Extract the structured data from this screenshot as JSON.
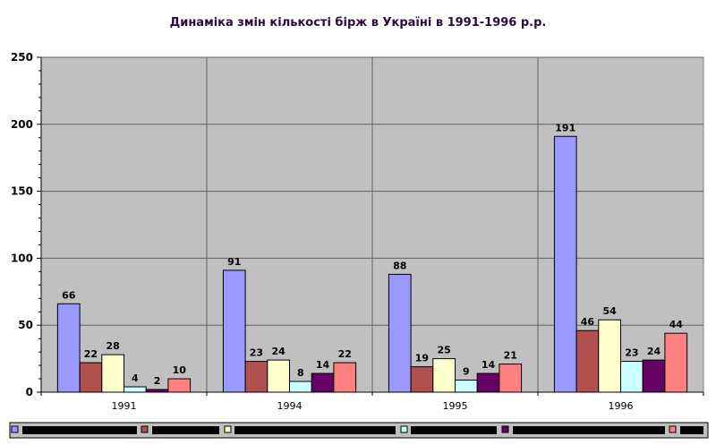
{
  "chart_data": {
    "type": "bar",
    "title": "Динаміка змін кількості бірж в Україні в 1991-1996 р.р.",
    "categories": [
      "1991",
      "1994",
      "1995",
      "1996"
    ],
    "series": [
      {
        "values": [
          66,
          91,
          88,
          191
        ]
      },
      {
        "values": [
          22,
          23,
          19,
          46
        ]
      },
      {
        "values": [
          28,
          24,
          25,
          54
        ]
      },
      {
        "values": [
          4,
          8,
          9,
          23
        ]
      },
      {
        "values": [
          2,
          14,
          14,
          24
        ]
      },
      {
        "values": [
          10,
          22,
          21,
          44
        ]
      }
    ],
    "series_colors": [
      "#9999ff",
      "#b0504f",
      "#ffffcc",
      "#ccffff",
      "#660066",
      "#ff8080"
    ],
    "plot_background": "#c0c0c0",
    "ylim": [
      0,
      250
    ],
    "yticks": [
      0,
      50,
      100,
      150,
      200,
      250
    ],
    "grid": true,
    "legend_position": "bottom",
    "xlabel": "",
    "ylabel": ""
  }
}
